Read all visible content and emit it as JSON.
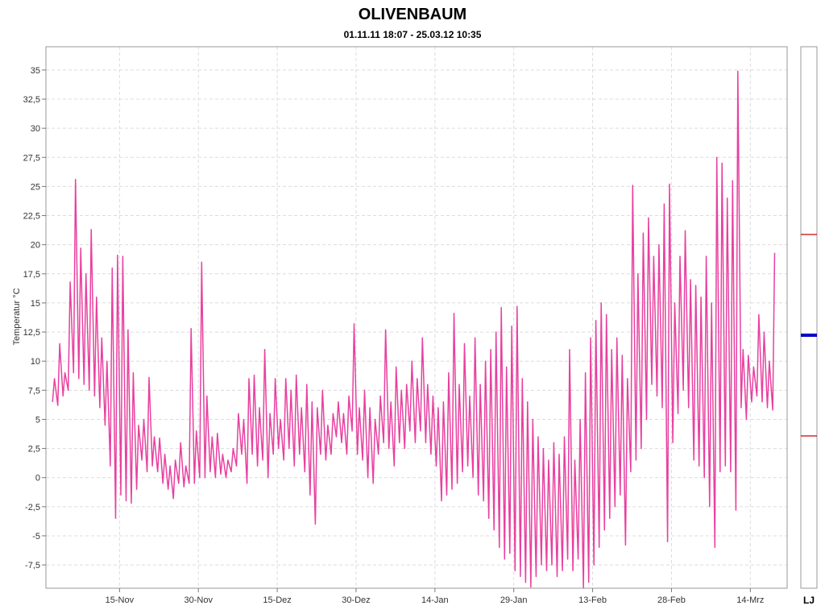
{
  "chart_data": {
    "type": "line",
    "title": "OLIVENBAUM",
    "subtitle": "01.11.11 18:07 - 25.03.12 10:35",
    "xlabel": "",
    "ylabel": "Temperatur  °C",
    "x_range": [
      "2011-11-01",
      "2012-03-21"
    ],
    "x_ticks": [
      {
        "date": "2011-11-15",
        "label": "15-Nov"
      },
      {
        "date": "2011-11-30",
        "label": "30-Nov"
      },
      {
        "date": "2011-12-15",
        "label": "15-Dez"
      },
      {
        "date": "2011-12-30",
        "label": "30-Dez"
      },
      {
        "date": "2012-01-14",
        "label": "14-Jan"
      },
      {
        "date": "2012-01-29",
        "label": "29-Jan"
      },
      {
        "date": "2012-02-13",
        "label": "13-Feb"
      },
      {
        "date": "2012-02-28",
        "label": "28-Feb"
      },
      {
        "date": "2012-03-14",
        "label": "14-Mrz"
      }
    ],
    "ylim": [
      -9.5,
      37
    ],
    "y_ticks": [
      {
        "value": -7.5,
        "label": "-7,5"
      },
      {
        "value": -5,
        "label": "-5"
      },
      {
        "value": -2.5,
        "label": "-2,5"
      },
      {
        "value": 0,
        "label": "0"
      },
      {
        "value": 2.5,
        "label": "2,5"
      },
      {
        "value": 5,
        "label": "5"
      },
      {
        "value": 7.5,
        "label": "7,5"
      },
      {
        "value": 10,
        "label": "10"
      },
      {
        "value": 12.5,
        "label": "12,5"
      },
      {
        "value": 15,
        "label": "15"
      },
      {
        "value": 17.5,
        "label": "17,5"
      },
      {
        "value": 20,
        "label": "20"
      },
      {
        "value": 22.5,
        "label": "22,5"
      },
      {
        "value": 25,
        "label": "25"
      },
      {
        "value": 27.5,
        "label": "27,5"
      },
      {
        "value": 30,
        "label": "30"
      },
      {
        "value": 32.5,
        "label": "32,5"
      },
      {
        "value": 35,
        "label": "35"
      }
    ],
    "grid": true,
    "line_color": "#e8409f",
    "series": [
      {
        "values": [
          {
            "date": "2011-11-02",
            "min": 6.5,
            "max": 8.5
          },
          {
            "date": "2011-11-03",
            "min": 6.2,
            "max": 11.5
          },
          {
            "date": "2011-11-04",
            "min": 7.0,
            "max": 9.0
          },
          {
            "date": "2011-11-05",
            "min": 7.5,
            "max": 16.8
          },
          {
            "date": "2011-11-06",
            "min": 9.0,
            "max": 25.6
          },
          {
            "date": "2011-11-07",
            "min": 8.5,
            "max": 19.7
          },
          {
            "date": "2011-11-08",
            "min": 8.0,
            "max": 17.5
          },
          {
            "date": "2011-11-09",
            "min": 7.5,
            "max": 21.3
          },
          {
            "date": "2011-11-10",
            "min": 7.0,
            "max": 15.5
          },
          {
            "date": "2011-11-11",
            "min": 6.0,
            "max": 12.0
          },
          {
            "date": "2011-11-12",
            "min": 4.5,
            "max": 10.0
          },
          {
            "date": "2011-11-13",
            "min": 1.0,
            "max": 18.0
          },
          {
            "date": "2011-11-14",
            "min": -3.5,
            "max": 19.1
          },
          {
            "date": "2011-11-15",
            "min": -1.5,
            "max": 19.0
          },
          {
            "date": "2011-11-16",
            "min": -2.0,
            "max": 12.7
          },
          {
            "date": "2011-11-17",
            "min": -2.2,
            "max": 9.0
          },
          {
            "date": "2011-11-18",
            "min": -1.0,
            "max": 4.5
          },
          {
            "date": "2011-11-19",
            "min": 1.5,
            "max": 5.0
          },
          {
            "date": "2011-11-20",
            "min": 0.5,
            "max": 8.6
          },
          {
            "date": "2011-11-21",
            "min": 1.0,
            "max": 3.5
          },
          {
            "date": "2011-11-22",
            "min": 0.5,
            "max": 3.4
          },
          {
            "date": "2011-11-23",
            "min": -0.5,
            "max": 2.0
          },
          {
            "date": "2011-11-24",
            "min": -1.0,
            "max": 1.0
          },
          {
            "date": "2011-11-25",
            "min": -1.8,
            "max": 1.5
          },
          {
            "date": "2011-11-26",
            "min": -0.5,
            "max": 3.0
          },
          {
            "date": "2011-11-27",
            "min": -0.8,
            "max": 1.0
          },
          {
            "date": "2011-11-28",
            "min": -0.5,
            "max": 12.8
          },
          {
            "date": "2011-11-29",
            "min": -0.5,
            "max": 4.0
          },
          {
            "date": "2011-11-30",
            "min": 0.0,
            "max": 18.5
          },
          {
            "date": "2011-12-01",
            "min": 0.0,
            "max": 7.0
          },
          {
            "date": "2011-12-02",
            "min": 0.5,
            "max": 3.5
          },
          {
            "date": "2011-12-03",
            "min": 0.0,
            "max": 3.8
          },
          {
            "date": "2011-12-04",
            "min": 0.3,
            "max": 2.0
          },
          {
            "date": "2011-12-05",
            "min": 0.0,
            "max": 1.5
          },
          {
            "date": "2011-12-06",
            "min": 0.5,
            "max": 2.5
          },
          {
            "date": "2011-12-07",
            "min": 1.0,
            "max": 5.5
          },
          {
            "date": "2011-12-08",
            "min": 2.0,
            "max": 5.0
          },
          {
            "date": "2011-12-09",
            "min": -0.5,
            "max": 8.5
          },
          {
            "date": "2011-12-10",
            "min": 2.0,
            "max": 8.8
          },
          {
            "date": "2011-12-11",
            "min": 1.0,
            "max": 6.0
          },
          {
            "date": "2011-12-12",
            "min": 1.5,
            "max": 11.0
          },
          {
            "date": "2011-12-13",
            "min": 0.0,
            "max": 5.5
          },
          {
            "date": "2011-12-14",
            "min": 2.0,
            "max": 8.5
          },
          {
            "date": "2011-12-15",
            "min": 2.5,
            "max": 5.0
          },
          {
            "date": "2011-12-16",
            "min": 1.5,
            "max": 8.5
          },
          {
            "date": "2011-12-17",
            "min": 2.5,
            "max": 7.5
          },
          {
            "date": "2011-12-18",
            "min": 1.0,
            "max": 8.8
          },
          {
            "date": "2011-12-19",
            "min": 2.0,
            "max": 6.0
          },
          {
            "date": "2011-12-20",
            "min": 0.5,
            "max": 8.0
          },
          {
            "date": "2011-12-21",
            "min": -1.5,
            "max": 6.5
          },
          {
            "date": "2011-12-22",
            "min": -4.0,
            "max": 6.0
          },
          {
            "date": "2011-12-23",
            "min": 2.0,
            "max": 7.5
          },
          {
            "date": "2011-12-24",
            "min": 1.5,
            "max": 4.5
          },
          {
            "date": "2011-12-25",
            "min": 2.0,
            "max": 5.5
          },
          {
            "date": "2011-12-26",
            "min": 3.5,
            "max": 6.5
          },
          {
            "date": "2011-12-27",
            "min": 3.0,
            "max": 5.5
          },
          {
            "date": "2011-12-28",
            "min": 2.0,
            "max": 7.0
          },
          {
            "date": "2011-12-29",
            "min": 4.0,
            "max": 13.2
          },
          {
            "date": "2011-12-30",
            "min": 2.0,
            "max": 6.0
          },
          {
            "date": "2011-12-31",
            "min": 1.5,
            "max": 7.5
          },
          {
            "date": "2012-01-01",
            "min": 0.0,
            "max": 6.0
          },
          {
            "date": "2012-01-02",
            "min": -0.5,
            "max": 5.0
          },
          {
            "date": "2012-01-03",
            "min": 2.0,
            "max": 7.0
          },
          {
            "date": "2012-01-04",
            "min": 3.0,
            "max": 12.7
          },
          {
            "date": "2012-01-05",
            "min": 2.5,
            "max": 6.5
          },
          {
            "date": "2012-01-06",
            "min": 1.0,
            "max": 9.5
          },
          {
            "date": "2012-01-07",
            "min": 3.0,
            "max": 7.5
          },
          {
            "date": "2012-01-08",
            "min": 2.5,
            "max": 8.0
          },
          {
            "date": "2012-01-09",
            "min": 4.0,
            "max": 10.0
          },
          {
            "date": "2012-01-10",
            "min": 3.0,
            "max": 8.5
          },
          {
            "date": "2012-01-11",
            "min": 4.0,
            "max": 12.0
          },
          {
            "date": "2012-01-12",
            "min": 3.0,
            "max": 8.0
          },
          {
            "date": "2012-01-13",
            "min": 2.0,
            "max": 7.0
          },
          {
            "date": "2012-01-14",
            "min": 1.0,
            "max": 6.0
          },
          {
            "date": "2012-01-15",
            "min": -2.0,
            "max": 6.5
          },
          {
            "date": "2012-01-16",
            "min": -1.5,
            "max": 9.0
          },
          {
            "date": "2012-01-17",
            "min": -1.0,
            "max": 14.1
          },
          {
            "date": "2012-01-18",
            "min": -0.5,
            "max": 8.0
          },
          {
            "date": "2012-01-19",
            "min": 0.5,
            "max": 11.5
          },
          {
            "date": "2012-01-20",
            "min": 1.0,
            "max": 7.0
          },
          {
            "date": "2012-01-21",
            "min": 0.0,
            "max": 12.0
          },
          {
            "date": "2012-01-22",
            "min": -1.5,
            "max": 8.0
          },
          {
            "date": "2012-01-23",
            "min": -2.0,
            "max": 10.0
          },
          {
            "date": "2012-01-24",
            "min": -3.5,
            "max": 11.0
          },
          {
            "date": "2012-01-25",
            "min": -4.5,
            "max": 12.5
          },
          {
            "date": "2012-01-26",
            "min": -6.0,
            "max": 14.6
          },
          {
            "date": "2012-01-27",
            "min": -7.0,
            "max": 9.5
          },
          {
            "date": "2012-01-28",
            "min": -6.5,
            "max": 13.0
          },
          {
            "date": "2012-01-29",
            "min": -8.0,
            "max": 14.7
          },
          {
            "date": "2012-01-30",
            "min": -8.5,
            "max": 8.5
          },
          {
            "date": "2012-01-31",
            "min": -9.0,
            "max": 6.5
          },
          {
            "date": "2012-02-01",
            "min": -9.4,
            "max": 5.0
          },
          {
            "date": "2012-02-02",
            "min": -8.5,
            "max": 3.5
          },
          {
            "date": "2012-02-03",
            "min": -7.5,
            "max": 2.5
          },
          {
            "date": "2012-02-04",
            "min": -8.0,
            "max": 1.5
          },
          {
            "date": "2012-02-05",
            "min": -7.5,
            "max": 3.0
          },
          {
            "date": "2012-02-06",
            "min": -8.5,
            "max": 2.0
          },
          {
            "date": "2012-02-07",
            "min": -8.0,
            "max": 3.5
          },
          {
            "date": "2012-02-08",
            "min": -7.0,
            "max": 11.0
          },
          {
            "date": "2012-02-09",
            "min": -8.0,
            "max": 1.5
          },
          {
            "date": "2012-02-10",
            "min": -7.0,
            "max": 5.0
          },
          {
            "date": "2012-02-11",
            "min": -9.5,
            "max": 9.0
          },
          {
            "date": "2012-02-12",
            "min": -9.0,
            "max": 12.0
          },
          {
            "date": "2012-02-13",
            "min": -7.5,
            "max": 13.5
          },
          {
            "date": "2012-02-14",
            "min": -6.0,
            "max": 15.0
          },
          {
            "date": "2012-02-15",
            "min": -4.5,
            "max": 14.0
          },
          {
            "date": "2012-02-16",
            "min": -3.5,
            "max": 11.0
          },
          {
            "date": "2012-02-17",
            "min": -2.5,
            "max": 12.0
          },
          {
            "date": "2012-02-18",
            "min": -1.5,
            "max": 10.5
          },
          {
            "date": "2012-02-19",
            "min": -5.8,
            "max": 8.5
          },
          {
            "date": "2012-02-20",
            "min": 0.5,
            "max": 25.1
          },
          {
            "date": "2012-02-21",
            "min": 1.5,
            "max": 17.5
          },
          {
            "date": "2012-02-22",
            "min": 2.5,
            "max": 21.0
          },
          {
            "date": "2012-02-23",
            "min": 5.0,
            "max": 22.3
          },
          {
            "date": "2012-02-24",
            "min": 8.0,
            "max": 19.0
          },
          {
            "date": "2012-02-25",
            "min": 7.0,
            "max": 20.0
          },
          {
            "date": "2012-02-26",
            "min": 6.0,
            "max": 23.5
          },
          {
            "date": "2012-02-27",
            "min": -5.5,
            "max": 25.2
          },
          {
            "date": "2012-02-28",
            "min": 3.0,
            "max": 15.0
          },
          {
            "date": "2012-02-29",
            "min": 5.5,
            "max": 19.0
          },
          {
            "date": "2012-03-01",
            "min": 7.5,
            "max": 21.2
          },
          {
            "date": "2012-03-02",
            "min": 6.0,
            "max": 17.0
          },
          {
            "date": "2012-03-03",
            "min": 1.5,
            "max": 16.5
          },
          {
            "date": "2012-03-04",
            "min": 1.0,
            "max": 15.5
          },
          {
            "date": "2012-03-05",
            "min": 0.0,
            "max": 19.0
          },
          {
            "date": "2012-03-06",
            "min": -2.5,
            "max": 15.0
          },
          {
            "date": "2012-03-07",
            "min": -6.0,
            "max": 27.5
          },
          {
            "date": "2012-03-08",
            "min": 0.5,
            "max": 27.0
          },
          {
            "date": "2012-03-09",
            "min": 1.0,
            "max": 24.0
          },
          {
            "date": "2012-03-10",
            "min": 0.5,
            "max": 25.5
          },
          {
            "date": "2012-03-11",
            "min": -2.8,
            "max": 34.9
          },
          {
            "date": "2012-03-12",
            "min": 6.0,
            "max": 11.0
          },
          {
            "date": "2012-03-13",
            "min": 5.0,
            "max": 10.5
          },
          {
            "date": "2012-03-14",
            "min": 6.5,
            "max": 9.5
          },
          {
            "date": "2012-03-15",
            "min": 7.0,
            "max": 14.0
          },
          {
            "date": "2012-03-16",
            "min": 6.5,
            "max": 12.5
          },
          {
            "date": "2012-03-17",
            "min": 6.0,
            "max": 10.0
          },
          {
            "date": "2012-03-18",
            "min": 5.8,
            "max": 19.3
          }
        ]
      }
    ]
  },
  "side_scale": {
    "label": "LJ",
    "marker_color": "#0000cc",
    "limit_color": "#cc0000"
  }
}
